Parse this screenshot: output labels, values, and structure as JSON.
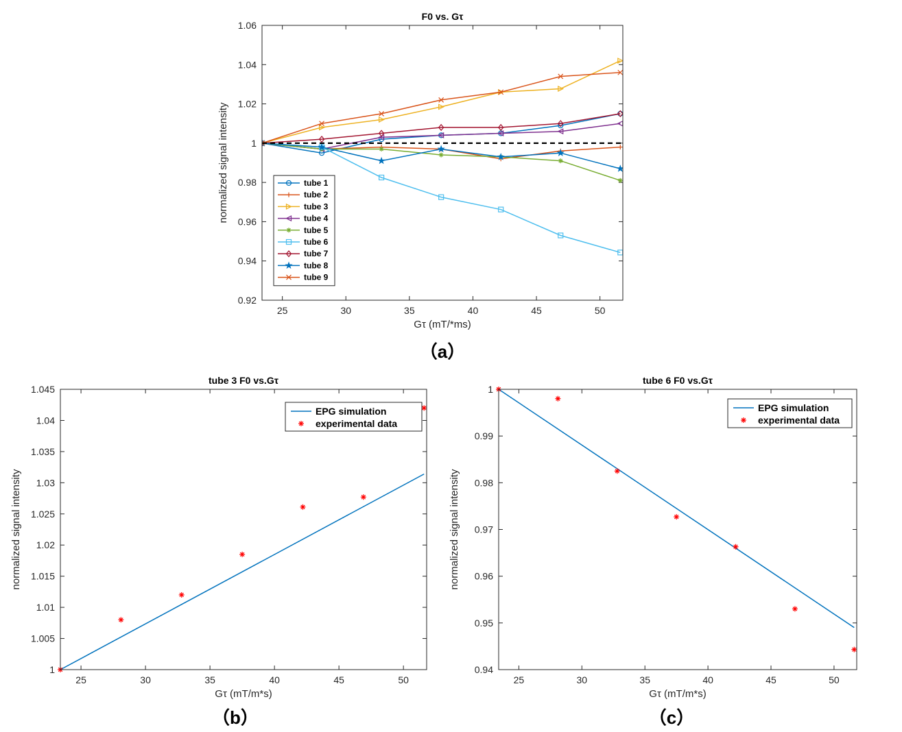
{
  "chart_data": [
    {
      "panel": "a",
      "type": "line",
      "title": "F0 vs. Gτ",
      "xlabel": "Gτ (mT/*ms)",
      "ylabel": "normalized signal intensity",
      "caption": "（a）",
      "xlim": [
        23.4,
        51.8
      ],
      "ylim": [
        0.92,
        1.06
      ],
      "xticks": [
        25,
        30,
        35,
        40,
        45,
        50
      ],
      "yticks": [
        0.92,
        0.94,
        0.96,
        0.98,
        1,
        1.02,
        1.04,
        1.06
      ],
      "yticklabels": [
        "0.92",
        "0.94",
        "0.96",
        "0.98",
        "1",
        "1.02",
        "1.04",
        "1.06"
      ],
      "x": [
        23.4,
        28.1,
        32.8,
        37.5,
        42.2,
        46.9,
        51.6
      ],
      "reference_line": {
        "y": 1,
        "style": "dashed",
        "color": "#000000"
      },
      "legend_position": "bottom-left",
      "series": [
        {
          "name": "tube 1",
          "color": "#0072BD",
          "marker": "circle",
          "values": [
            1.0,
            0.995,
            1.002,
            1.004,
            1.005,
            1.009,
            1.015
          ]
        },
        {
          "name": "tube 2",
          "color": "#D95319",
          "marker": "plus",
          "values": [
            1.0,
            0.997,
            0.998,
            0.997,
            0.992,
            0.996,
            0.998
          ]
        },
        {
          "name": "tube 3",
          "color": "#EDB120",
          "marker": "triangle-right",
          "values": [
            1.0,
            1.008,
            1.012,
            1.0185,
            1.026,
            1.0277,
            1.042
          ]
        },
        {
          "name": "tube 4",
          "color": "#7E2F8E",
          "marker": "triangle-left",
          "values": [
            1.0,
            0.997,
            1.003,
            1.004,
            1.005,
            1.006,
            1.01
          ]
        },
        {
          "name": "tube 5",
          "color": "#77AC30",
          "marker": "asterisk",
          "values": [
            1.0,
            0.997,
            0.997,
            0.994,
            0.993,
            0.991,
            0.981
          ]
        },
        {
          "name": "tube 6",
          "color": "#4DBEEE",
          "marker": "square",
          "values": [
            1.0,
            0.998,
            0.9825,
            0.9725,
            0.9662,
            0.953,
            0.9443
          ]
        },
        {
          "name": "tube 7",
          "color": "#A2142F",
          "marker": "diamond",
          "values": [
            1.0,
            1.002,
            1.005,
            1.008,
            1.008,
            1.01,
            1.015
          ]
        },
        {
          "name": "tube 8",
          "color": "#0072BD",
          "marker": "pentagram",
          "values": [
            1.0,
            0.998,
            0.991,
            0.997,
            0.993,
            0.995,
            0.987
          ]
        },
        {
          "name": "tube 9",
          "color": "#D95319",
          "marker": "x",
          "values": [
            1.0,
            1.01,
            1.015,
            1.022,
            1.026,
            1.034,
            1.036
          ]
        }
      ]
    },
    {
      "panel": "b",
      "type": "scatter",
      "title": "tube 3  F0 vs.Gτ",
      "xlabel": "Gτ (mT/m*s)",
      "ylabel": "normalized signal intensity",
      "caption": "（b）",
      "xlim": [
        23.4,
        51.8
      ],
      "ylim": [
        1,
        1.045
      ],
      "xticks": [
        25,
        30,
        35,
        40,
        45,
        50
      ],
      "yticks": [
        1,
        1.005,
        1.01,
        1.015,
        1.02,
        1.025,
        1.03,
        1.035,
        1.04,
        1.045
      ],
      "yticklabels": [
        "1",
        "1.005",
        "1.01",
        "1.015",
        "1.02",
        "1.025",
        "1.03",
        "1.035",
        "1.04",
        "1.045"
      ],
      "legend_position": "top-right",
      "series": [
        {
          "name": "EPG simulation",
          "kind": "line",
          "color": "#0072BD",
          "x": [
            23.4,
            51.6
          ],
          "values": [
            1.0,
            1.0314
          ]
        },
        {
          "name": "experimental data",
          "kind": "points",
          "color": "#FF0000",
          "marker": "asterisk",
          "x": [
            23.4,
            28.1,
            32.8,
            37.5,
            42.2,
            46.9,
            51.6
          ],
          "values": [
            1.0,
            1.008,
            1.012,
            1.0185,
            1.0261,
            1.0277,
            1.042
          ]
        }
      ]
    },
    {
      "panel": "c",
      "type": "scatter",
      "title": "tube 6  F0 vs.Gτ",
      "xlabel": "Gτ (mT/m*s)",
      "ylabel": "normalized signal intensity",
      "caption": "（c）",
      "xlim": [
        23.4,
        51.8
      ],
      "ylim": [
        0.94,
        1
      ],
      "xticks": [
        25,
        30,
        35,
        40,
        45,
        50
      ],
      "yticks": [
        0.94,
        0.95,
        0.96,
        0.97,
        0.98,
        0.99,
        1
      ],
      "yticklabels": [
        "0.94",
        "0.95",
        "0.96",
        "0.97",
        "0.98",
        "0.99",
        "1"
      ],
      "legend_position": "top-right",
      "series": [
        {
          "name": "EPG simulation",
          "kind": "line",
          "color": "#0072BD",
          "x": [
            23.4,
            51.6
          ],
          "values": [
            1.0,
            0.949
          ]
        },
        {
          "name": "experimental data",
          "kind": "points",
          "color": "#FF0000",
          "marker": "asterisk",
          "x": [
            23.4,
            28.1,
            32.8,
            37.5,
            42.2,
            46.9,
            51.6
          ],
          "values": [
            1.0,
            0.998,
            0.9825,
            0.9727,
            0.9663,
            0.953,
            0.9443
          ]
        }
      ]
    }
  ]
}
